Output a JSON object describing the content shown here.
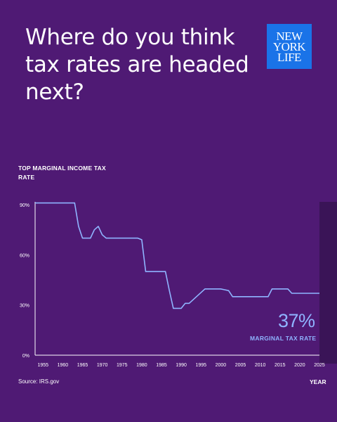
{
  "headline": "Where do you think tax rates are headed next?",
  "logo": {
    "lines": [
      "NEW",
      "YORK",
      "LIFE"
    ]
  },
  "source": "Source: IRS.gov",
  "callout": {
    "value": "37%",
    "label": "MARGINAL TAX RATE"
  },
  "colors": {
    "background": "#4f1a74",
    "line": "#8fb4ff",
    "highlight": "#3a1457"
  },
  "chart_data": {
    "type": "line",
    "ylabel": "TOP MARGINAL INCOME TAX RATE",
    "xlabel": "YEAR",
    "ylim": [
      0,
      90
    ],
    "xlim": [
      1953,
      2025
    ],
    "x_ticks": [
      "1955",
      "1960",
      "1965",
      "1970",
      "1975",
      "1980",
      "1985",
      "1990",
      "1995",
      "2000",
      "2005",
      "2010",
      "2015",
      "2020",
      "2025"
    ],
    "y_ticks": [
      "0%",
      "30%",
      "60%",
      "90%"
    ],
    "x": [
      1953,
      1963,
      1964,
      1965,
      1967,
      1968,
      1969,
      1970,
      1971,
      1978,
      1979,
      1980,
      1981,
      1986,
      1987,
      1988,
      1990,
      1991,
      1992,
      1996,
      2000,
      2001,
      2002,
      2003,
      2010,
      2011,
      2012,
      2013,
      2017,
      2018,
      2025
    ],
    "values": [
      91,
      91,
      77,
      70,
      70,
      75,
      77,
      72,
      70,
      70,
      70,
      69,
      50,
      50,
      38.5,
      28,
      28,
      31,
      31,
      39.6,
      39.6,
      39.1,
      38.6,
      35,
      35,
      35,
      35,
      39.6,
      39.6,
      37,
      37
    ],
    "grid": false,
    "shaded_region": [
      2025,
      2025.8
    ]
  }
}
